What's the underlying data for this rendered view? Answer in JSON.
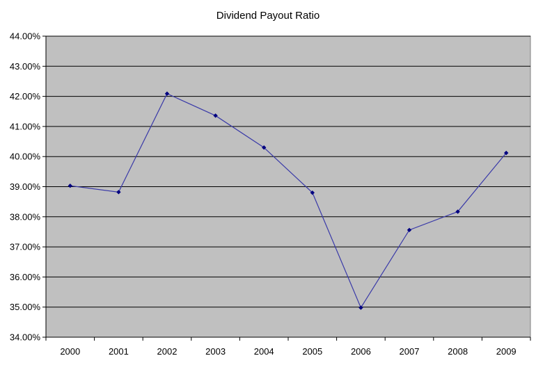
{
  "chart_data": {
    "type": "line",
    "title": "Dividend Payout Ratio",
    "xlabel": "",
    "ylabel": "",
    "categories": [
      "2000",
      "2001",
      "2002",
      "2003",
      "2004",
      "2005",
      "2006",
      "2007",
      "2008",
      "2009"
    ],
    "series": [
      {
        "values": [
          39.03,
          38.82,
          42.09,
          41.36,
          40.3,
          38.8,
          34.98,
          37.56,
          38.17,
          40.12
        ]
      }
    ],
    "ylim": [
      34,
      44
    ],
    "y_step": 1,
    "y_tick_labels": [
      "34.00%",
      "35.00%",
      "36.00%",
      "37.00%",
      "38.00%",
      "39.00%",
      "40.00%",
      "41.00%",
      "42.00%",
      "43.00%",
      "44.00%"
    ],
    "grid": true,
    "legend": "none",
    "colors": {
      "plot_background": "#c0c0c0",
      "line": "#3a3aa8",
      "marker": "#000080",
      "gridline": "#000000"
    }
  }
}
